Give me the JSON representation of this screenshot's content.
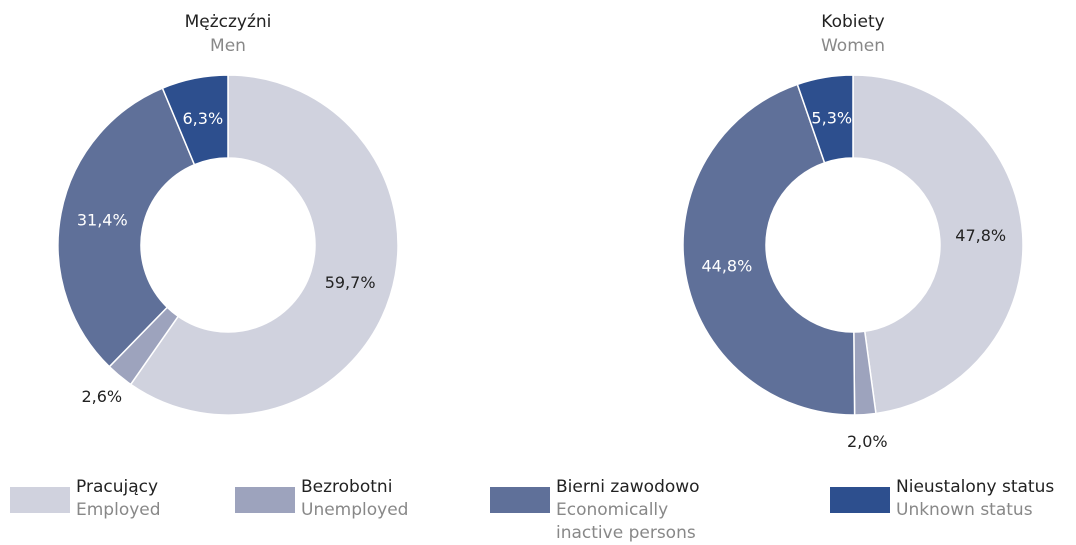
{
  "chart_data": [
    {
      "type": "pie",
      "title": "Mężczyźni",
      "subtitle": "Men",
      "values": [
        59.7,
        2.6,
        31.4,
        6.3
      ],
      "value_labels": [
        "59,7%",
        "2,6%",
        "31,4%",
        "6,3%"
      ]
    },
    {
      "type": "pie",
      "title": "Kobiety",
      "subtitle": "Women",
      "values": [
        47.8,
        2.0,
        44.8,
        5.3
      ],
      "value_labels": [
        "47,8%",
        "2,0%",
        "44,8%",
        "5,3%"
      ]
    }
  ],
  "legend": [
    {
      "name": "Pracujący",
      "name_en": "Employed",
      "color": "#d0d2de",
      "label_color": "#222222"
    },
    {
      "name": "Bezrobotni",
      "name_en": "Unemployed",
      "color": "#9da3bd",
      "label_color": "#222222"
    },
    {
      "name": "Bierni zawodowo",
      "name_en": "Economically inactive persons",
      "color": "#5f7099",
      "label_color": "#ffffff"
    },
    {
      "name": "Nieustalony status",
      "name_en": "Unknown status",
      "color": "#2d4f8e",
      "label_color": "#ffffff"
    }
  ]
}
